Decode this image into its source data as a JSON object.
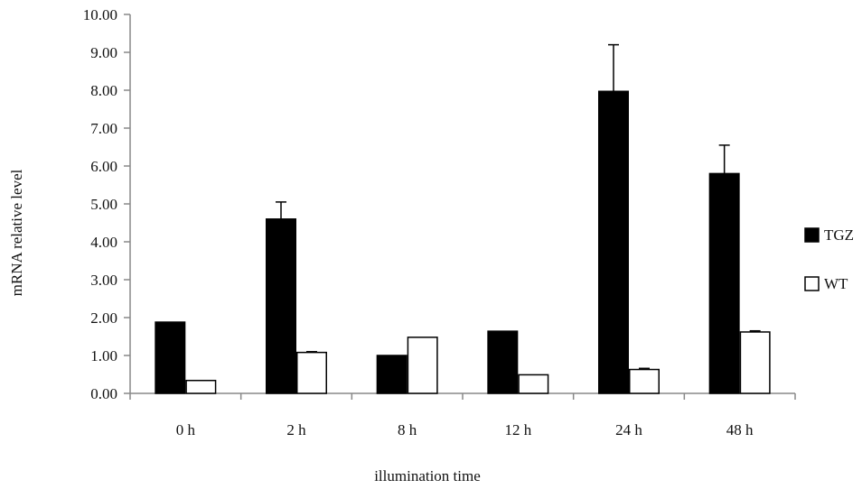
{
  "chart_data": {
    "type": "bar",
    "title": "",
    "xlabel": "illumination time",
    "ylabel": "mRNA relative level",
    "ylim": [
      0,
      10
    ],
    "ytick_step": 1,
    "ytick_labels": [
      "0.00",
      "1.00",
      "2.00",
      "3.00",
      "4.00",
      "5.00",
      "6.00",
      "7.00",
      "8.00",
      "9.00",
      "10.00"
    ],
    "categories": [
      "0 h",
      "2 h",
      "8 h",
      "12 h",
      "24 h",
      "48 h"
    ],
    "series": [
      {
        "name": "TGZ",
        "fill": "#000000",
        "values": [
          1.88,
          4.6,
          1.0,
          1.64,
          7.97,
          5.8
        ],
        "error_upper": [
          null,
          5.05,
          null,
          null,
          9.2,
          6.55
        ]
      },
      {
        "name": "WT",
        "fill": "#ffffff",
        "values": [
          0.34,
          1.08,
          1.48,
          0.49,
          0.63,
          1.62
        ],
        "error_upper": [
          null,
          1.1,
          null,
          null,
          0.66,
          1.65
        ]
      }
    ],
    "legend_position": "right",
    "grid": false
  }
}
